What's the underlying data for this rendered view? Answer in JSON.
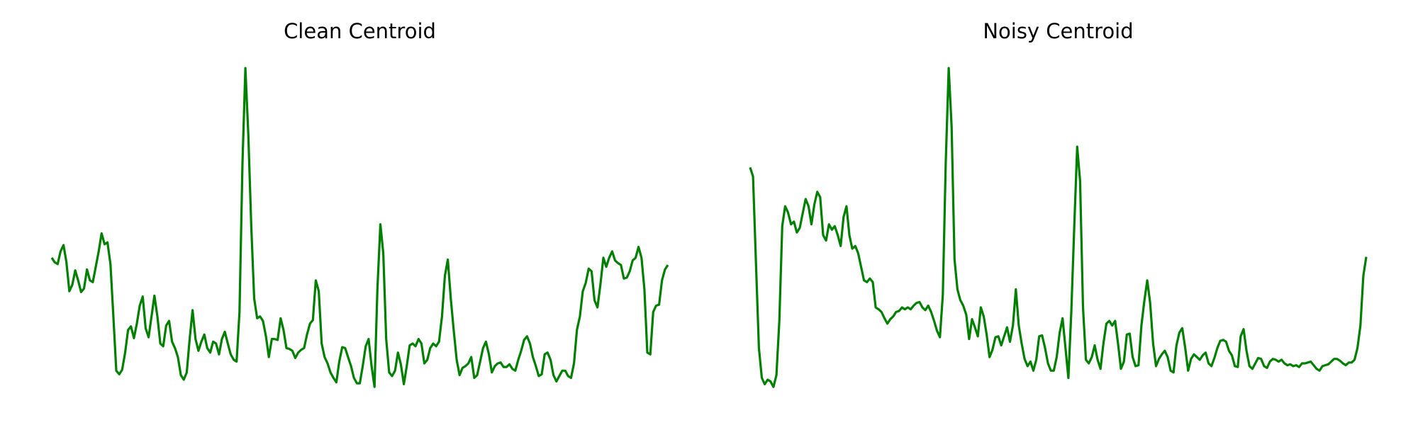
{
  "chart_data": [
    {
      "type": "line",
      "title": "Clean Centroid",
      "color": "#008000",
      "ylim": [
        0,
        400
      ],
      "values": [
        175,
        170,
        168,
        182,
        189,
        170,
        138,
        145,
        161,
        150,
        137,
        141,
        162,
        150,
        148,
        165,
        182,
        202,
        190,
        192,
        168,
        110,
        50,
        46,
        51,
        70,
        95,
        99,
        86,
        102,
        122,
        132,
        97,
        87,
        110,
        133,
        110,
        80,
        77,
        100,
        105,
        82,
        75,
        65,
        45,
        40,
        48,
        85,
        117,
        85,
        72,
        82,
        90,
        75,
        70,
        82,
        80,
        68,
        85,
        93,
        80,
        68,
        62,
        60,
        115,
        280,
        385,
        310,
        210,
        130,
        108,
        110,
        105,
        88,
        65,
        85,
        85,
        84,
        108,
        95,
        75,
        74,
        72,
        64,
        70,
        73,
        75,
        90,
        102,
        106,
        150,
        138,
        80,
        65,
        58,
        48,
        42,
        37,
        60,
        76,
        75,
        65,
        55,
        42,
        36,
        36,
        55,
        77,
        85,
        55,
        32,
        140,
        212,
        180,
        85,
        48,
        44,
        50,
        70,
        57,
        35,
        55,
        78,
        80,
        77,
        85,
        80,
        58,
        62,
        75,
        80,
        77,
        82,
        110,
        155,
        173,
        130,
        95,
        62,
        45,
        53,
        55,
        58,
        65,
        42,
        45,
        60,
        75,
        82,
        68,
        48,
        55,
        58,
        59,
        54,
        54,
        57,
        52,
        50,
        62,
        72,
        84,
        88,
        80,
        65,
        55,
        44,
        46,
        68,
        70,
        62,
        45,
        38,
        44,
        50,
        50,
        44,
        42,
        58,
        95,
        110,
        138,
        147,
        163,
        160,
        128,
        120,
        145,
        175,
        165,
        175,
        182,
        172,
        169,
        167,
        152,
        153,
        160,
        172,
        175,
        187,
        175,
        140,
        70,
        68,
        115,
        122,
        123,
        150,
        162,
        167
      ]
    },
    {
      "type": "line",
      "title": "Noisy Centroid",
      "color": "#008000",
      "ylim": [
        0,
        400
      ],
      "values": [
        275,
        265,
        170,
        75,
        42,
        35,
        40,
        38,
        32,
        45,
        105,
        210,
        232,
        225,
        212,
        215,
        203,
        208,
        224,
        240,
        232,
        212,
        234,
        248,
        242,
        200,
        194,
        212,
        206,
        210,
        200,
        188,
        220,
        232,
        200,
        185,
        188,
        180,
        165,
        150,
        148,
        152,
        148,
        120,
        118,
        115,
        108,
        102,
        107,
        110,
        115,
        116,
        120,
        118,
        120,
        118,
        122,
        125,
        126,
        120,
        117,
        122,
        115,
        105,
        94,
        87,
        134,
        280,
        385,
        320,
        173,
        140,
        128,
        122,
        112,
        85,
        107,
        98,
        88,
        120,
        110,
        90,
        65,
        73,
        87,
        88,
        78,
        88,
        98,
        82,
        100,
        140,
        100,
        80,
        63,
        55,
        60,
        50,
        62,
        88,
        89,
        75,
        58,
        50,
        50,
        65,
        92,
        108,
        75,
        42,
        115,
        210,
        298,
        260,
        120,
        62,
        58,
        65,
        78,
        62,
        52,
        80,
        102,
        105,
        100,
        105,
        80,
        52,
        60,
        90,
        91,
        65,
        55,
        56,
        100,
        127,
        150,
        125,
        80,
        55,
        63,
        68,
        72,
        65,
        50,
        48,
        78,
        92,
        97,
        75,
        50,
        63,
        68,
        65,
        62,
        67,
        70,
        58,
        55,
        64,
        75,
        83,
        84,
        82,
        72,
        67,
        55,
        54,
        88,
        96,
        72,
        55,
        52,
        58,
        64,
        63,
        55,
        53,
        60,
        63,
        62,
        60,
        62,
        58,
        56,
        57,
        55,
        56,
        54,
        58,
        58,
        59,
        60,
        56,
        52,
        50,
        55,
        56,
        57,
        60,
        63,
        63,
        61,
        58,
        56,
        59,
        59,
        62,
        75,
        100,
        155,
        176
      ]
    }
  ]
}
